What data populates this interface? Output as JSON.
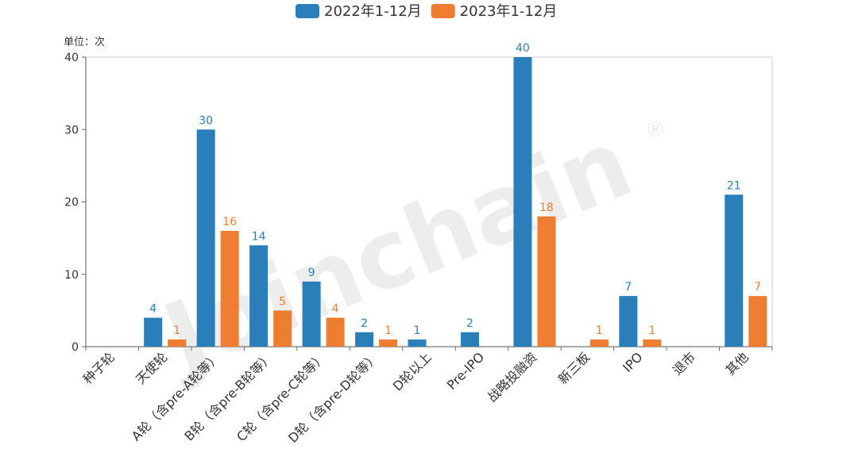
{
  "chart_data": {
    "type": "bar",
    "title": "",
    "unit_label": "单位：次",
    "xlabel": "",
    "ylabel": "",
    "ylim": [
      0,
      40
    ],
    "yticks": [
      0,
      10,
      20,
      30,
      40
    ],
    "grid": false,
    "legend_position": "top-center",
    "watermark": "Joinchain®",
    "categories": [
      "种子轮",
      "天使轮",
      "A轮（含pre-A轮等）",
      "B轮（含pre-B轮等）",
      "C轮（含pre-C轮等）",
      "D轮（含pre-D轮等）",
      "D轮以上",
      "Pre-IPO",
      "战略投融资",
      "新三板",
      "IPO",
      "退市",
      "其他"
    ],
    "series": [
      {
        "name": "2022年1-12月",
        "color": "#2a7fba",
        "values": [
          0,
          4,
          30,
          14,
          9,
          2,
          1,
          2,
          40,
          0,
          7,
          0,
          21
        ]
      },
      {
        "name": "2023年1-12月",
        "color": "#ee7d31",
        "values": [
          0,
          1,
          16,
          5,
          4,
          1,
          0,
          0,
          18,
          1,
          1,
          0,
          7
        ]
      }
    ]
  }
}
